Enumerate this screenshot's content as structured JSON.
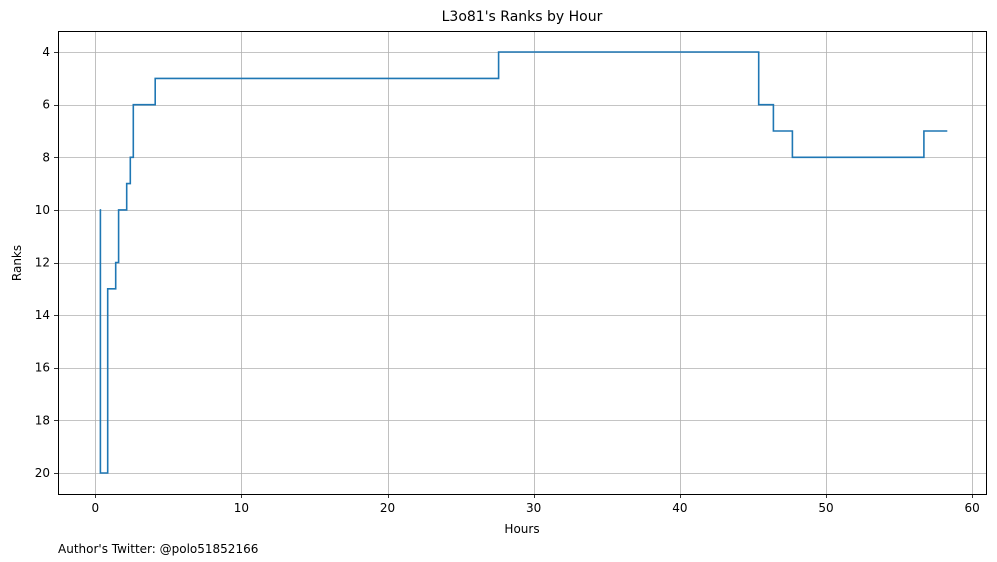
{
  "chart_data": {
    "type": "line",
    "title": "L3o81's Ranks by Hour",
    "xlabel": "Hours",
    "ylabel": "Ranks",
    "xlim": [
      -2.55,
      60.95
    ],
    "ylim": [
      20.8,
      3.2
    ],
    "y_inverted": true,
    "step": "post",
    "grid": true,
    "xticks": [
      0,
      10,
      20,
      30,
      40,
      50,
      60
    ],
    "yticks": [
      4,
      6,
      8,
      10,
      12,
      14,
      16,
      18,
      20
    ],
    "series": [
      {
        "color": "#1f77b4",
        "x": [
          0.3,
          0.35,
          0.85,
          1.4,
          1.6,
          2.15,
          2.4,
          2.6,
          4.1,
          27.6,
          45.4,
          46.4,
          47.7,
          56.7,
          58.3
        ],
        "y": [
          10,
          20,
          13,
          12,
          10,
          9,
          8,
          6,
          5,
          4,
          6,
          7,
          8,
          7,
          7
        ]
      }
    ]
  },
  "footer": {
    "credit": "Author's Twitter: @polo51852166"
  }
}
